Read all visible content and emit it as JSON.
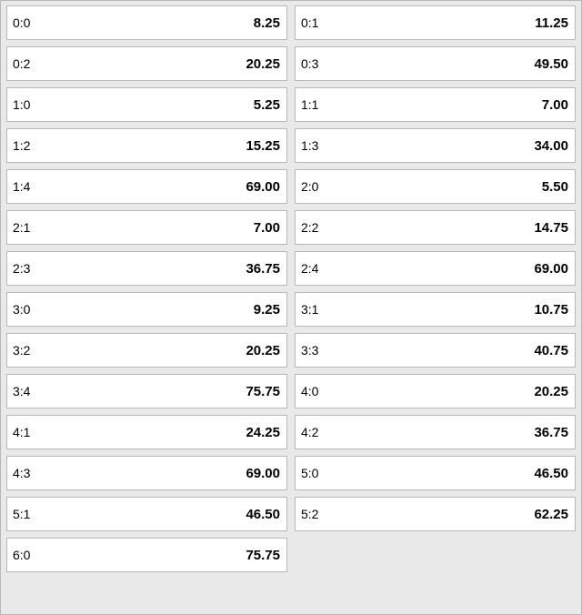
{
  "colors": {
    "panel_bg": "#e9e9e9",
    "panel_border": "#b8b8b8",
    "cell_bg": "#ffffff",
    "cell_border": "#b8b8b8",
    "label_color": "#000000",
    "value_color": "#000000"
  },
  "grid": {
    "columns": 2,
    "cells": [
      {
        "label": "0:0",
        "value": "8.25"
      },
      {
        "label": "0:1",
        "value": "11.25"
      },
      {
        "label": "0:2",
        "value": "20.25"
      },
      {
        "label": "0:3",
        "value": "49.50"
      },
      {
        "label": "1:0",
        "value": "5.25"
      },
      {
        "label": "1:1",
        "value": "7.00"
      },
      {
        "label": "1:2",
        "value": "15.25"
      },
      {
        "label": "1:3",
        "value": "34.00"
      },
      {
        "label": "1:4",
        "value": "69.00"
      },
      {
        "label": "2:0",
        "value": "5.50"
      },
      {
        "label": "2:1",
        "value": "7.00"
      },
      {
        "label": "2:2",
        "value": "14.75"
      },
      {
        "label": "2:3",
        "value": "36.75"
      },
      {
        "label": "2:4",
        "value": "69.00"
      },
      {
        "label": "3:0",
        "value": "9.25"
      },
      {
        "label": "3:1",
        "value": "10.75"
      },
      {
        "label": "3:2",
        "value": "20.25"
      },
      {
        "label": "3:3",
        "value": "40.75"
      },
      {
        "label": "3:4",
        "value": "75.75"
      },
      {
        "label": "4:0",
        "value": "20.25"
      },
      {
        "label": "4:1",
        "value": "24.25"
      },
      {
        "label": "4:2",
        "value": "36.75"
      },
      {
        "label": "4:3",
        "value": "69.00"
      },
      {
        "label": "5:0",
        "value": "46.50"
      },
      {
        "label": "5:1",
        "value": "46.50"
      },
      {
        "label": "5:2",
        "value": "62.25"
      },
      {
        "label": "6:0",
        "value": "75.75"
      }
    ]
  }
}
